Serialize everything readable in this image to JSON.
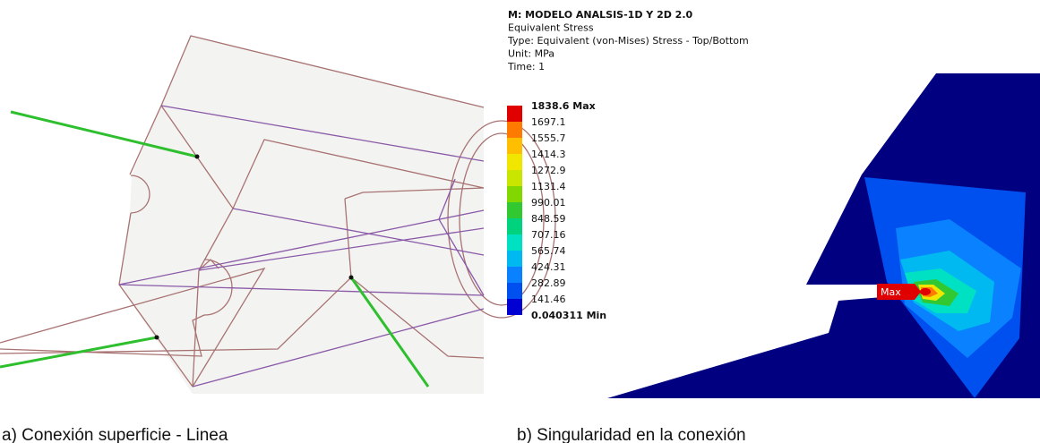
{
  "panel_b": {
    "header": [
      "M: MODELO ANALSIS-1D Y 2D 2.0",
      "Equivalent Stress",
      "Type: Equivalent (von-Mises) Stress - Top/Bottom",
      "Unit: MPa",
      "Time: 1"
    ],
    "legend": {
      "labels": [
        "1838.6 Max",
        "1697.1",
        "1555.7",
        "1414.3",
        "1272.9",
        "1131.4",
        "990.01",
        "848.59",
        "707.16",
        "565.74",
        "424.31",
        "282.89",
        "141.46",
        "0.040311 Min"
      ],
      "colors": [
        "#e00000",
        "#ff7a00",
        "#ffbe00",
        "#f0e600",
        "#c8e600",
        "#82d700",
        "#32c832",
        "#00d27d",
        "#00e1c3",
        "#00b9f0",
        "#0a82ff",
        "#0050f0",
        "#0000d2"
      ]
    },
    "probe": "Max"
  },
  "captions": [
    "a) Conexión superficie - Linea",
    "b) Singularidad en la conexión"
  ]
}
